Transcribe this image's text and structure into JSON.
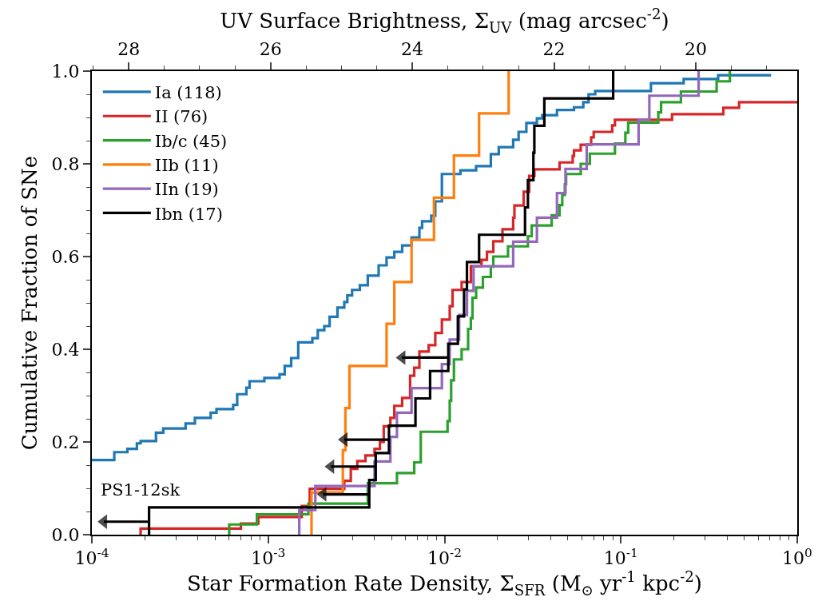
{
  "chart_data": {
    "type": "step",
    "xlabel": "Star Formation Rate Density, Σ$_{SFR}$ (M$_{⊙}$ yr$^{-1}$ kpc$^{-2}$)",
    "x2label": "UV Surface Brightness, Σ$_{UV}$ (mag arcsec$^{-2}$)",
    "ylabel": "Cumulative Fraction of SNe",
    "log": "x",
    "legend": "top left",
    "line_style": "solid",
    "marker": "none",
    "xlim": [
      0.0001,
      1
    ],
    "ylim": [
      0,
      1
    ],
    "x2lim": [
      28.52,
      18.57
    ],
    "xticks": [
      {
        "value": 0.0001,
        "label": "10$^{-4}$"
      },
      {
        "value": 0.0002,
        "label": null
      },
      {
        "value": 0.0003,
        "label": null
      },
      {
        "value": 0.0004,
        "label": null
      },
      {
        "value": 0.0005,
        "label": null
      },
      {
        "value": 0.0006,
        "label": null
      },
      {
        "value": 0.0007,
        "label": null
      },
      {
        "value": 0.0008,
        "label": null
      },
      {
        "value": 0.0009,
        "label": null
      },
      {
        "value": 0.001,
        "label": "10$^{-3}$"
      },
      {
        "value": 0.002,
        "label": null
      },
      {
        "value": 0.003,
        "label": null
      },
      {
        "value": 0.004,
        "label": null
      },
      {
        "value": 0.005,
        "label": null
      },
      {
        "value": 0.006,
        "label": null
      },
      {
        "value": 0.007,
        "label": null
      },
      {
        "value": 0.008,
        "label": null
      },
      {
        "value": 0.009,
        "label": null
      },
      {
        "value": 0.01,
        "label": "10$^{-2}$"
      },
      {
        "value": 0.02,
        "label": null
      },
      {
        "value": 0.03,
        "label": null
      },
      {
        "value": 0.04,
        "label": null
      },
      {
        "value": 0.05,
        "label": null
      },
      {
        "value": 0.06,
        "label": null
      },
      {
        "value": 0.07,
        "label": null
      },
      {
        "value": 0.08,
        "label": null
      },
      {
        "value": 0.09,
        "label": null
      },
      {
        "value": 0.1,
        "label": "10$^{-1}$"
      },
      {
        "value": 0.2,
        "label": null
      },
      {
        "value": 0.3,
        "label": null
      },
      {
        "value": 0.4,
        "label": null
      },
      {
        "value": 0.5,
        "label": null
      },
      {
        "value": 0.6,
        "label": null
      },
      {
        "value": 0.7,
        "label": null
      },
      {
        "value": 0.8,
        "label": null
      },
      {
        "value": 0.9,
        "label": null
      },
      {
        "value": 1,
        "label": "10$^{0}$"
      }
    ],
    "x2ticks": [
      {
        "value": 28.5,
        "label": null
      },
      28,
      {
        "value": 27.5,
        "label": null
      },
      {
        "value": 27,
        "label": null
      },
      {
        "value": 26.5,
        "label": null
      },
      26,
      {
        "value": 25.5,
        "label": null
      },
      {
        "value": 25,
        "label": null
      },
      {
        "value": 24.5,
        "label": null
      },
      24,
      {
        "value": 23.5,
        "label": null
      },
      {
        "value": 23,
        "label": null
      },
      {
        "value": 22.5,
        "label": null
      },
      22,
      {
        "value": 21.5,
        "label": null
      },
      {
        "value": 21,
        "label": null
      },
      {
        "value": 20.5,
        "label": null
      },
      20,
      {
        "value": 19.5,
        "label": null
      },
      {
        "value": 19,
        "label": null
      }
    ],
    "yticks": [
      {
        "value": 0,
        "label": "0.0"
      },
      {
        "value": 0.05,
        "label": null
      },
      {
        "value": 0.1,
        "label": null
      },
      {
        "value": 0.15,
        "label": null
      },
      {
        "value": 0.2,
        "label": "0.2"
      },
      {
        "value": 0.25,
        "label": null
      },
      {
        "value": 0.3,
        "label": null
      },
      {
        "value": 0.35,
        "label": null
      },
      {
        "value": 0.4,
        "label": "0.4"
      },
      {
        "value": 0.45,
        "label": null
      },
      {
        "value": 0.5,
        "label": null
      },
      {
        "value": 0.55,
        "label": null
      },
      {
        "value": 0.6,
        "label": "0.6"
      },
      {
        "value": 0.65,
        "label": null
      },
      {
        "value": 0.7,
        "label": null
      },
      {
        "value": 0.75,
        "label": null
      },
      {
        "value": 0.8,
        "label": "0.8"
      },
      {
        "value": 0.85,
        "label": null
      },
      {
        "value": 0.9,
        "label": null
      },
      {
        "value": 0.95,
        "label": null
      },
      {
        "value": 1,
        "label": "1.0"
      }
    ],
    "annotations": [
      "PS1-12sk"
    ],
    "series": [
      {
        "name": "Ia (118)",
        "color": "#1f77b4",
        "x": [
          0.0001,
          0.000134,
          0.000159,
          0.00018,
          0.000189,
          0.000231,
          0.000254,
          0.00034,
          0.000384,
          0.000472,
          0.000509,
          0.000633,
          0.000667,
          0.000752,
          0.000784,
          0.000951,
          0.00116,
          0.00124,
          0.00135,
          0.00148,
          0.00178,
          0.00191,
          0.00208,
          0.00223,
          0.00247,
          0.0027,
          0.00281,
          0.00299,
          0.00331,
          0.00367,
          0.00423,
          0.00469,
          0.00519,
          0.00575,
          0.0065,
          0.0072,
          0.00746,
          0.00841,
          0.00886,
          0.00966,
          0.0123,
          0.0151,
          0.0183,
          0.0203,
          0.0245,
          0.0263,
          0.0291,
          0.0334,
          0.0358,
          0.0434,
          0.0542,
          0.0612,
          0.0656,
          0.0715,
          0.148,
          0.227,
          0.356,
          0.711
        ],
        "values": [
          0.161,
          0.178,
          0.185,
          0.197,
          0.202,
          0.22,
          0.229,
          0.24,
          0.252,
          0.263,
          0.271,
          0.28,
          0.303,
          0.317,
          0.331,
          0.338,
          0.346,
          0.364,
          0.381,
          0.415,
          0.424,
          0.441,
          0.45,
          0.47,
          0.49,
          0.502,
          0.516,
          0.528,
          0.538,
          0.559,
          0.581,
          0.598,
          0.61,
          0.624,
          0.641,
          0.662,
          0.676,
          0.688,
          0.719,
          0.778,
          0.786,
          0.795,
          0.821,
          0.836,
          0.852,
          0.869,
          0.888,
          0.898,
          0.905,
          0.916,
          0.922,
          0.933,
          0.95,
          0.957,
          0.974,
          0.983,
          0.991,
          0.991
        ]
      },
      {
        "name": "II (76)",
        "color": "#d62728",
        "x": [
          0.000189,
          0.000189,
          0.0007,
          0.000879,
          0.00155,
          0.00172,
          0.0027,
          0.00294,
          0.0032,
          0.00356,
          0.00401,
          0.0043,
          0.00452,
          0.00493,
          0.00519,
          0.00575,
          0.00638,
          0.00673,
          0.0072,
          0.00813,
          0.00886,
          0.00966,
          0.0107,
          0.0111,
          0.0125,
          0.0141,
          0.0162,
          0.0174,
          0.0189,
          0.0213,
          0.0245,
          0.0249,
          0.0281,
          0.0302,
          0.0323,
          0.0449,
          0.0533,
          0.0542,
          0.0592,
          0.0678,
          0.0701,
          0.0893,
          0.0925,
          0.195,
          0.381,
          0.468,
          1
        ],
        "values": [
          0,
          0.013,
          0.024,
          0.038,
          0.062,
          0.099,
          0.116,
          0.142,
          0.159,
          0.171,
          0.185,
          0.2,
          0.234,
          0.252,
          0.278,
          0.295,
          0.343,
          0.36,
          0.395,
          0.409,
          0.435,
          0.464,
          0.493,
          0.528,
          0.545,
          0.579,
          0.593,
          0.61,
          0.633,
          0.659,
          0.684,
          0.71,
          0.74,
          0.774,
          0.788,
          0.803,
          0.817,
          0.829,
          0.841,
          0.857,
          0.869,
          0.883,
          0.895,
          0.907,
          0.921,
          0.933,
          0.933
        ]
      },
      {
        "name": "Ib/c (45)",
        "color": "#2ca02c",
        "x": [
          0.000601,
          0.000601,
          0.000863,
          0.00169,
          0.00367,
          0.00537,
          0.00673,
          0.00733,
          0.0104,
          0.0107,
          0.0109,
          0.0113,
          0.0125,
          0.0136,
          0.0141,
          0.0144,
          0.0151,
          0.0165,
          0.0183,
          0.0189,
          0.0229,
          0.0297,
          0.0312,
          0.0405,
          0.0449,
          0.0465,
          0.0481,
          0.0489,
          0.0592,
          0.0667,
          0.0925,
          0.106,
          0.11,
          0.163,
          0.169,
          0.219,
          0.349,
          0.415
        ],
        "values": [
          0,
          0.022,
          0.044,
          0.067,
          0.111,
          0.133,
          0.156,
          0.222,
          0.245,
          0.289,
          0.333,
          0.378,
          0.4,
          0.444,
          0.467,
          0.511,
          0.533,
          0.556,
          0.578,
          0.6,
          0.622,
          0.644,
          0.667,
          0.689,
          0.711,
          0.733,
          0.756,
          0.778,
          0.8,
          0.822,
          0.844,
          0.867,
          0.889,
          0.911,
          0.933,
          0.956,
          0.978,
          1.0
        ]
      },
      {
        "name": "IIb (11)",
        "color": "#ff7f0e",
        "x": [
          0.00176,
          0.00176,
          0.00265,
          0.00274,
          0.00289,
          0.00469,
          0.00519,
          0.0065,
          0.00871,
          0.0113,
          0.0157,
          0.0231
        ],
        "values": [
          0,
          0.091,
          0.182,
          0.273,
          0.364,
          0.455,
          0.545,
          0.636,
          0.727,
          0.818,
          0.909,
          1.0
        ]
      },
      {
        "name": "IIn (19)",
        "color": "#9467bd",
        "x": [
          0.0015,
          0.0015,
          0.00185,
          0.00401,
          0.00493,
          0.00537,
          0.0065,
          0.00966,
          0.0107,
          0.0121,
          0.0134,
          0.0146,
          0.0245,
          0.0334,
          0.0434,
          0.0485,
          0.064,
          0.126,
          0.145,
          0.276
        ],
        "values": [
          0,
          0.053,
          0.105,
          0.158,
          0.211,
          0.263,
          0.316,
          0.368,
          0.421,
          0.474,
          0.526,
          0.579,
          0.632,
          0.684,
          0.737,
          0.789,
          0.842,
          0.895,
          0.947,
          1.0
        ]
      },
      {
        "name": "Ibn (17)",
        "color": "#000000",
        "x": [
          0.000211,
          0.000211,
          0.00374,
          0.00407,
          0.00484,
          0.00684,
          0.00828,
          0.0105,
          0.0119,
          0.0129,
          0.0134,
          0.0157,
          0.0286,
          0.0297,
          0.0319,
          0.0323,
          0.0368,
          0.0904
        ],
        "values": [
          0,
          0.059,
          0.118,
          0.176,
          0.235,
          0.294,
          0.353,
          0.412,
          0.471,
          0.529,
          0.588,
          0.647,
          0.706,
          0.765,
          0.824,
          0.882,
          0.941,
          1.0
        ]
      },
      {
        "type": "line",
        "marker": "triangle",
        "color": "#000000",
        "x": [
          0.000211,
          0.000117,
          null,
          0.00374,
          0.00205,
          null,
          0.00407,
          0.00227,
          null,
          0.00484,
          0.0027,
          null,
          0.0105,
          0.00575
        ],
        "values": [
          0.028,
          0.028,
          null,
          0.087,
          0.087,
          null,
          0.147,
          0.147,
          null,
          0.205,
          0.205,
          null,
          0.382,
          0.382
        ]
      }
    ]
  }
}
